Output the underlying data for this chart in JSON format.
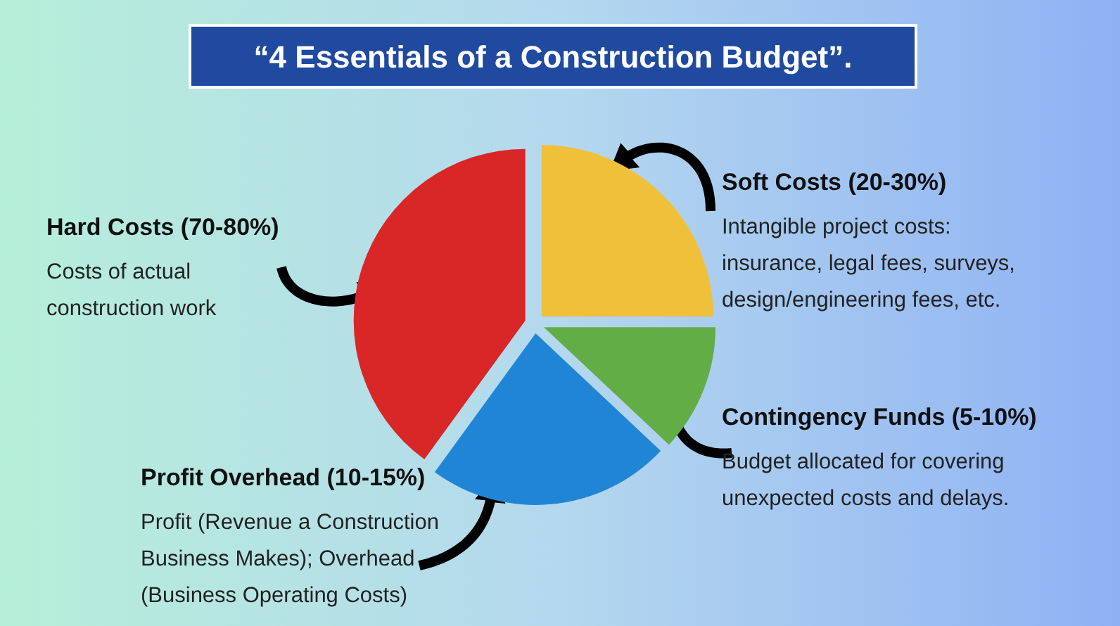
{
  "chart_data": {
    "type": "pie",
    "title": "“4 Essentials of a Construction Budget”.",
    "categories": [
      "Soft Costs (20-30%)",
      "Contingency Funds (5-10%)",
      "Profit Overhead (10-15%)",
      "Hard Costs (70-80%)"
    ],
    "values": [
      25,
      12,
      23,
      40
    ],
    "colors": [
      "#f0c03a",
      "#62ad45",
      "#2185d5",
      "#d92626"
    ],
    "annotations": [
      "Intangible project costs: insurance, legal fees, surveys, design/engineering fees, etc.",
      "Budget allocated for covering unexpected costs and delays.",
      "Profit (Revenue a Construction Business Makes); Overhead (Business Operating Costs)",
      "Costs of actual construction work"
    ]
  }
}
